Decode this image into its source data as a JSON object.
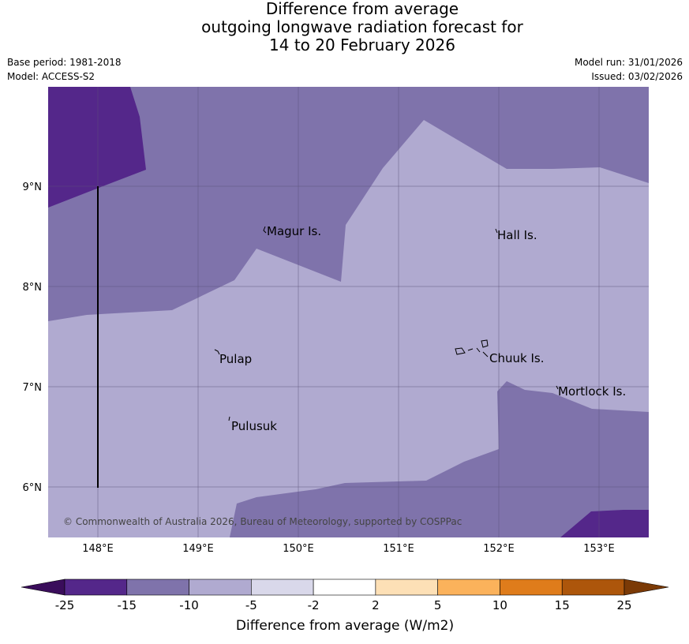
{
  "header": {
    "title_line1": "Difference from average",
    "title_line2": "outgoing longwave radiation forecast for",
    "title_line3": "14 to 20 February 2026",
    "base_period": "Base period: 1981-2018",
    "model": "Model: ACCESS-S2",
    "model_run": "Model run: 31/01/2026",
    "issued": "Issued: 03/02/2026"
  },
  "map": {
    "lat_labels": [
      "9°N",
      "8°N",
      "7°N",
      "6°N"
    ],
    "lon_labels": [
      "148°E",
      "149°E",
      "150°E",
      "151°E",
      "152°E",
      "153°E"
    ],
    "places": [
      "Magur Is.",
      "Hall Is.",
      "Pulap",
      "Chuuk Is.",
      "Mortlock Is.",
      "Pulusuk"
    ],
    "copyright": "© Commonwealth of Australia 2026, Bureau of Meteorology, supported by COSPPac"
  },
  "colorbar": {
    "label": "Difference from average (W/m2)",
    "ticks": [
      "-25",
      "-15",
      "-10",
      "-5",
      "-2",
      "2",
      "5",
      "10",
      "15",
      "25"
    ],
    "bins": [
      {
        "range": "< -25",
        "color": "#3a0d5b"
      },
      {
        "range": "-25 to -15",
        "color": "#54278a"
      },
      {
        "range": "-15 to -10",
        "color": "#7f73ab"
      },
      {
        "range": "-10 to -5",
        "color": "#b0aad0"
      },
      {
        "range": "-5 to -2",
        "color": "#d9d8ea"
      },
      {
        "range": "-2 to 2",
        "color": "#ffffff"
      },
      {
        "range": "2 to 5",
        "color": "#fde0b6"
      },
      {
        "range": "5 to 10",
        "color": "#fbb25b"
      },
      {
        "range": "10 to 15",
        "color": "#df7c1b"
      },
      {
        "range": "15 to 25",
        "color": "#ad560b"
      },
      {
        "range": "> 25",
        "color": "#7b3a06"
      }
    ]
  }
}
